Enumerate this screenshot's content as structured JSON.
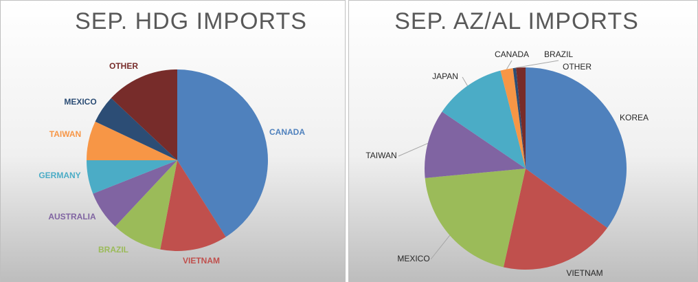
{
  "chart_data": [
    {
      "type": "pie",
      "title": "SEP. HDG IMPORTS",
      "categories": [
        "CANADA",
        "VIETNAM",
        "BRAZIL",
        "AUSTRALIA",
        "GERMANY",
        "TAIWAN",
        "MEXICO",
        "OTHER"
      ],
      "values": [
        41,
        12,
        9,
        7,
        6,
        7,
        5,
        13
      ],
      "colors": [
        "#4f81bd",
        "#c0504d",
        "#9bbb59",
        "#8064a2",
        "#4bacc6",
        "#f79646",
        "#2c4d75",
        "#772c2a"
      ],
      "labels_colored": true
    },
    {
      "type": "pie",
      "title": "SEP. AZ/AL IMPORTS",
      "categories": [
        "KOREA",
        "VIETNAM",
        "MEXICO",
        "TAIWAN",
        "JAPAN",
        "CANADA",
        "BRAZIL",
        "OTHER"
      ],
      "values": [
        35,
        18.5,
        20,
        11,
        11.5,
        2,
        0.5,
        1.5
      ],
      "colors": [
        "#4f81bd",
        "#c0504d",
        "#9bbb59",
        "#8064a2",
        "#4bacc6",
        "#f79646",
        "#2c4d75",
        "#772c2a"
      ],
      "labels_colored": false
    }
  ]
}
